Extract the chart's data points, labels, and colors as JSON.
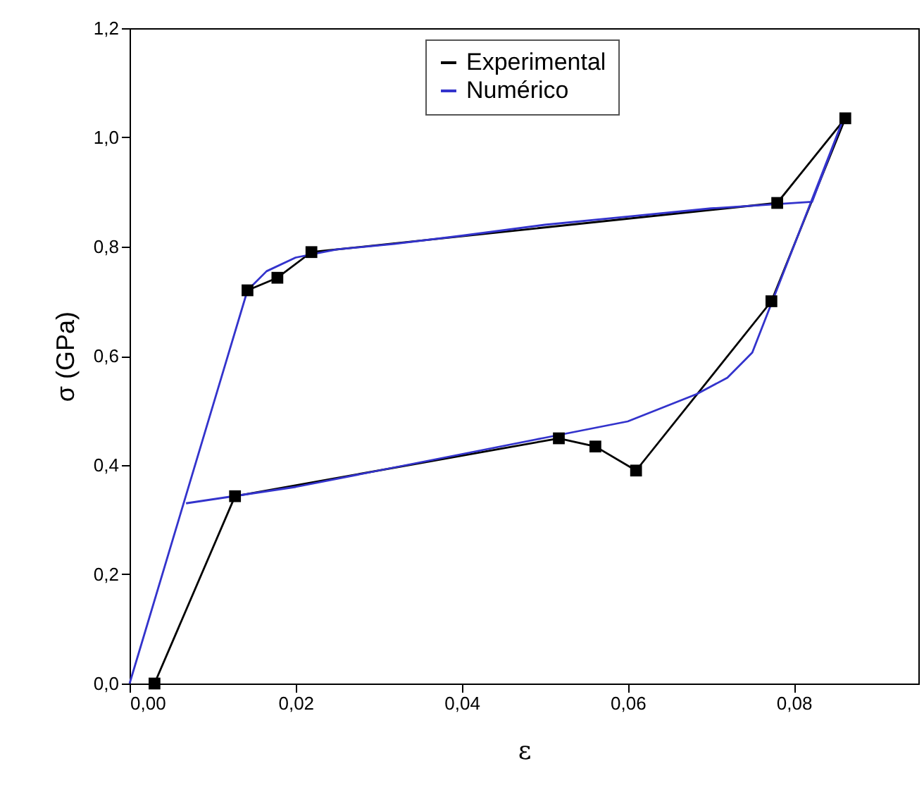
{
  "chart_data": {
    "type": "line",
    "xlabel": "ε",
    "ylabel": "σ (GPa)",
    "xlim": [
      0,
      0.095
    ],
    "ylim": [
      0,
      1.2
    ],
    "xticks": [
      {
        "value": 0,
        "label": "0,00"
      },
      {
        "value": 0.02,
        "label": "0,02"
      },
      {
        "value": 0.04,
        "label": "0,04"
      },
      {
        "value": 0.06,
        "label": "0,06"
      },
      {
        "value": 0.08,
        "label": "0,08"
      }
    ],
    "yticks": [
      {
        "value": 0,
        "label": "0,0"
      },
      {
        "value": 0.2,
        "label": "0,2"
      },
      {
        "value": 0.4,
        "label": "0,4"
      },
      {
        "value": 0.6,
        "label": "0,6"
      },
      {
        "value": 0.8,
        "label": "0,8"
      },
      {
        "value": 1.0,
        "label": "1,0"
      },
      {
        "value": 1.2,
        "label": "1,2"
      }
    ],
    "grid": false,
    "legend": "top right",
    "series": [
      {
        "name": "Experimental",
        "color": "#000000",
        "marker": "square",
        "x": [
          0.0142,
          0.0178,
          0.0219,
          0.078,
          0.0862,
          0.0773,
          0.061,
          0.0561,
          0.0517,
          0.0127,
          0.003
        ],
        "values": [
          0.72,
          0.743,
          0.79,
          0.88,
          1.035,
          0.7,
          0.39,
          0.434,
          0.449,
          0.343,
          0
        ]
      },
      {
        "name": "Numérico",
        "color": "#3333cc",
        "marker": "none",
        "x": [
          0,
          0.0142,
          0.0165,
          0.02,
          0.025,
          0.0319,
          0.04,
          0.05,
          0.06,
          0.07,
          0.0822,
          0.086,
          0.075,
          0.072,
          0.0683,
          0.06,
          0.05,
          0.04,
          0.03,
          0.02,
          0.0068
        ],
        "values": [
          0,
          0.72,
          0.755,
          0.78,
          0.795,
          0.805,
          0.82,
          0.84,
          0.855,
          0.87,
          0.882,
          1.035,
          0.606,
          0.56,
          0.53,
          0.48,
          0.45,
          0.42,
          0.39,
          0.36,
          0.33
        ]
      }
    ]
  }
}
